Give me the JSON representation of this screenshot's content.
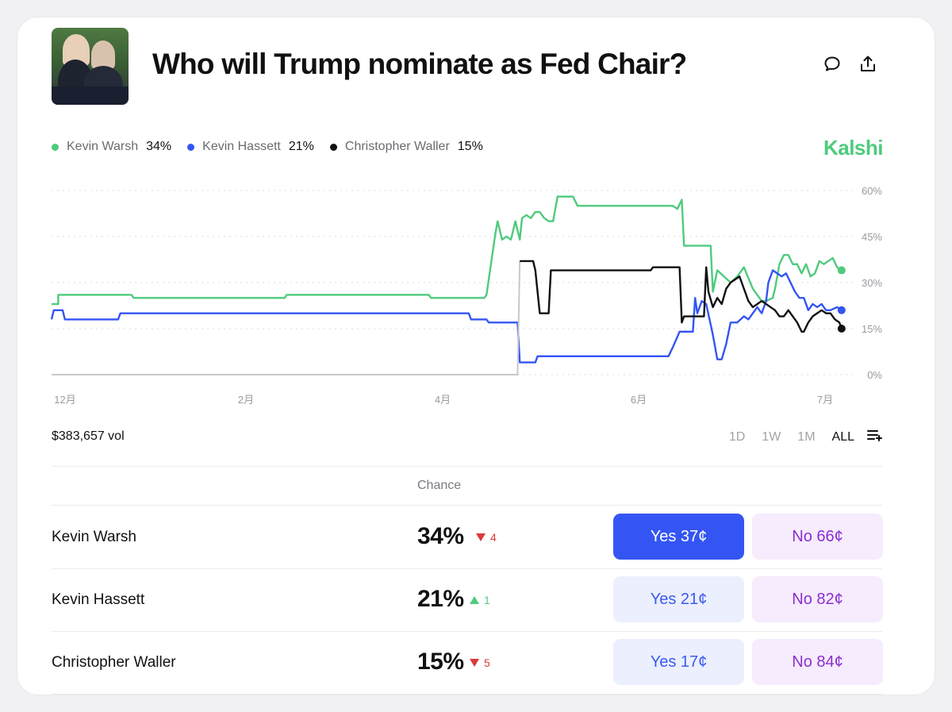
{
  "header": {
    "title": "Who will Trump nominate as Fed Chair?",
    "thumbnail_icon": "photo-thumbnail",
    "comment_icon": "comment-icon",
    "share_icon": "share-icon"
  },
  "brand": "Kalshi",
  "legend": [
    {
      "name": "Kevin Warsh",
      "value": "34%",
      "color": "#4ecb7d"
    },
    {
      "name": "Kevin Hassett",
      "value": "21%",
      "color": "#3455f3"
    },
    {
      "name": "Christopher Waller",
      "value": "15%",
      "color": "#111111"
    }
  ],
  "chart_data": {
    "type": "line",
    "title": "",
    "xlabel": "",
    "ylabel": "",
    "ylim": [
      0,
      60
    ],
    "y_ticks": [
      "60%",
      "45%",
      "30%",
      "15%",
      "0%"
    ],
    "x_ticks": [
      "12月",
      "2月",
      "4月",
      "6月",
      "7月"
    ],
    "grid": true,
    "legend_placement": "top-left",
    "series": [
      {
        "name": "Kevin Warsh",
        "color": "#4ecb7d",
        "points": [
          [
            0,
            23
          ],
          [
            3,
            23
          ],
          [
            3,
            26
          ],
          [
            36,
            26
          ],
          [
            37,
            25
          ],
          [
            105,
            25
          ],
          [
            106,
            26
          ],
          [
            170,
            26
          ],
          [
            171,
            25
          ],
          [
            195,
            25
          ],
          [
            196,
            26
          ],
          [
            200,
            46
          ],
          [
            201,
            50
          ],
          [
            203,
            44
          ],
          [
            205,
            45
          ],
          [
            207,
            44
          ],
          [
            209,
            50
          ],
          [
            211,
            44
          ],
          [
            212,
            51
          ],
          [
            214,
            52
          ],
          [
            216,
            51
          ],
          [
            218,
            53
          ],
          [
            220,
            53
          ],
          [
            222,
            51
          ],
          [
            224,
            50
          ],
          [
            226,
            50
          ],
          [
            228,
            58
          ],
          [
            235,
            58
          ],
          [
            237,
            55
          ],
          [
            280,
            55
          ],
          [
            282,
            54
          ],
          [
            284,
            57
          ],
          [
            285,
            42
          ],
          [
            297,
            42
          ],
          [
            298,
            27
          ],
          [
            300,
            34
          ],
          [
            303,
            32
          ],
          [
            306,
            30
          ],
          [
            309,
            32
          ],
          [
            312,
            35
          ],
          [
            316,
            28
          ],
          [
            318,
            26
          ],
          [
            320,
            24
          ],
          [
            322,
            24
          ],
          [
            325,
            25
          ],
          [
            326,
            28
          ],
          [
            328,
            36
          ],
          [
            330,
            39
          ],
          [
            332,
            39
          ],
          [
            334,
            36
          ],
          [
            336,
            36
          ],
          [
            338,
            33
          ],
          [
            340,
            36
          ],
          [
            342,
            32
          ],
          [
            344,
            33
          ],
          [
            346,
            37
          ],
          [
            348,
            36
          ],
          [
            350,
            37
          ],
          [
            352,
            38
          ],
          [
            354,
            35
          ],
          [
            356,
            34
          ]
        ]
      },
      {
        "name": "Kevin Hassett",
        "color": "#3455f3",
        "points": [
          [
            0,
            18
          ],
          [
            1,
            21
          ],
          [
            5,
            21
          ],
          [
            6,
            18
          ],
          [
            30,
            18
          ],
          [
            31,
            20
          ],
          [
            188,
            20
          ],
          [
            189,
            18
          ],
          [
            196,
            18
          ],
          [
            197,
            17
          ],
          [
            210,
            17
          ],
          [
            211,
            4
          ],
          [
            218,
            4
          ],
          [
            219,
            6
          ],
          [
            278,
            6
          ],
          [
            280,
            9
          ],
          [
            283,
            14
          ],
          [
            289,
            14
          ],
          [
            290,
            25
          ],
          [
            291,
            20
          ],
          [
            293,
            24
          ],
          [
            295,
            23
          ],
          [
            298,
            13
          ],
          [
            300,
            5
          ],
          [
            302,
            5
          ],
          [
            304,
            10
          ],
          [
            306,
            17
          ],
          [
            309,
            17
          ],
          [
            312,
            19
          ],
          [
            314,
            18
          ],
          [
            316,
            20
          ],
          [
            318,
            22
          ],
          [
            320,
            20
          ],
          [
            322,
            24
          ],
          [
            323,
            30
          ],
          [
            325,
            34
          ],
          [
            327,
            33
          ],
          [
            329,
            32
          ],
          [
            331,
            33
          ],
          [
            333,
            30
          ],
          [
            335,
            27
          ],
          [
            337,
            25
          ],
          [
            339,
            25
          ],
          [
            341,
            21
          ],
          [
            343,
            23
          ],
          [
            345,
            22
          ],
          [
            347,
            23
          ],
          [
            349,
            21
          ],
          [
            351,
            21
          ],
          [
            354,
            22
          ],
          [
            356,
            21
          ]
        ]
      },
      {
        "name": "Christopher Waller",
        "color": "#111111",
        "points": [
          [
            0,
            0
          ],
          [
            210,
            0
          ],
          [
            211,
            37
          ],
          [
            217,
            37
          ],
          [
            218,
            34
          ],
          [
            219,
            27
          ],
          [
            220,
            20
          ],
          [
            224,
            20
          ],
          [
            225,
            34
          ],
          [
            270,
            34
          ],
          [
            271,
            35
          ],
          [
            283,
            35
          ],
          [
            284,
            17
          ],
          [
            285,
            19
          ],
          [
            294,
            19
          ],
          [
            295,
            35
          ],
          [
            296,
            27
          ],
          [
            298,
            22
          ],
          [
            300,
            25
          ],
          [
            302,
            23
          ],
          [
            304,
            28
          ],
          [
            306,
            30
          ],
          [
            308,
            31
          ],
          [
            310,
            32
          ],
          [
            312,
            28
          ],
          [
            314,
            24
          ],
          [
            316,
            22
          ],
          [
            318,
            23
          ],
          [
            320,
            24
          ],
          [
            322,
            23
          ],
          [
            324,
            22
          ],
          [
            326,
            21
          ],
          [
            328,
            19
          ],
          [
            330,
            19
          ],
          [
            332,
            21
          ],
          [
            334,
            19
          ],
          [
            336,
            17
          ],
          [
            338,
            14
          ],
          [
            339,
            14
          ],
          [
            341,
            17
          ],
          [
            343,
            19
          ],
          [
            345,
            20
          ],
          [
            347,
            21
          ],
          [
            349,
            20
          ],
          [
            351,
            20
          ],
          [
            353,
            18
          ],
          [
            355,
            17
          ],
          [
            356,
            15
          ]
        ]
      }
    ]
  },
  "volume": "$383,657 vol",
  "ranges": [
    "1D",
    "1W",
    "1M",
    "ALL"
  ],
  "active_range": "ALL",
  "add_icon": "add-to-list-icon",
  "table": {
    "chance_header": "Chance",
    "rows": [
      {
        "name": "Kevin Warsh",
        "chance": "34%",
        "direction": "down",
        "delta": "4",
        "yes": "Yes 37¢",
        "no": "No 66¢",
        "yes_primary": true
      },
      {
        "name": "Kevin Hassett",
        "chance": "21%",
        "direction": "up",
        "delta": "1",
        "yes": "Yes 21¢",
        "no": "No 82¢",
        "yes_primary": false
      },
      {
        "name": "Christopher Waller",
        "chance": "15%",
        "direction": "down",
        "delta": "5",
        "yes": "Yes 17¢",
        "no": "No 84¢",
        "yes_primary": false
      }
    ]
  }
}
